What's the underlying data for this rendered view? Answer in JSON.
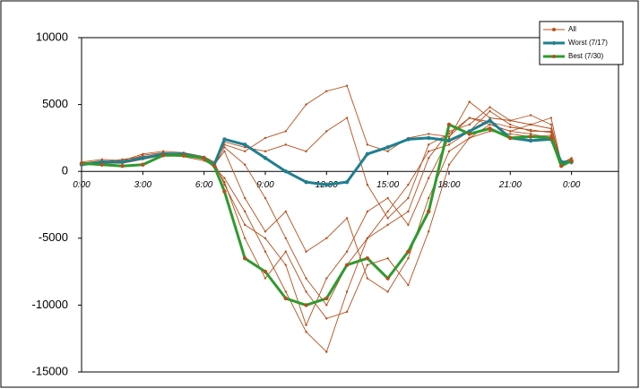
{
  "chart_data": {
    "type": "line",
    "x": [
      0,
      1,
      2,
      3,
      4,
      5,
      6,
      6.5,
      7,
      8,
      9,
      10,
      11,
      12,
      13,
      14,
      15,
      16,
      17,
      18,
      19,
      20,
      21,
      22,
      23,
      23.5,
      24
    ],
    "xlim": [
      0,
      26.3
    ],
    "xticks": [
      {
        "value": 0,
        "label": "0:00"
      },
      {
        "value": 3,
        "label": "3:00"
      },
      {
        "value": 6,
        "label": "6:00"
      },
      {
        "value": 9,
        "label": "9:00"
      },
      {
        "value": 12,
        "label": "12:00"
      },
      {
        "value": 15,
        "label": "15:00"
      },
      {
        "value": 18,
        "label": "18:00"
      },
      {
        "value": 21,
        "label": "21:00"
      },
      {
        "value": 24,
        "label": "0:00"
      }
    ],
    "ylim": [
      -15000,
      10000
    ],
    "yticks": [
      -15000,
      -10000,
      -5000,
      0,
      5000,
      10000
    ],
    "legend": "upper-right",
    "series": [
      {
        "name": "All",
        "color": "#b5501e",
        "lines": [
          [
            600,
            800,
            700,
            1200,
            1400,
            1300,
            1000,
            600,
            2000,
            1500,
            2500,
            3000,
            5000,
            6000,
            6400,
            2000,
            1500,
            2500,
            2800,
            2600,
            4000,
            3500,
            3000,
            3500,
            4000,
            600,
            1000
          ],
          [
            500,
            600,
            800,
            1000,
            1200,
            1300,
            900,
            300,
            -500,
            -3000,
            -6000,
            -9000,
            -12000,
            -13500,
            -9000,
            -5000,
            -3000,
            -1000,
            1500,
            2000,
            3000,
            4500,
            3500,
            3000,
            3000,
            500,
            700
          ],
          [
            700,
            900,
            800,
            1300,
            1500,
            1400,
            1100,
            700,
            -1000,
            -4000,
            -5000,
            -7000,
            -11500,
            -8000,
            -6000,
            -3000,
            -2000,
            -4000,
            -500,
            2500,
            5200,
            4000,
            3800,
            3500,
            3200,
            800,
            600
          ],
          [
            600,
            700,
            900,
            1100,
            1300,
            1200,
            900,
            500,
            1500,
            -2000,
            -4500,
            -3000,
            -6000,
            -5000,
            -3500,
            -8000,
            -9000,
            -6500,
            -2000,
            1500,
            2500,
            3500,
            3000,
            2800,
            2500,
            700,
            900
          ],
          [
            500,
            600,
            600,
            900,
            1200,
            1100,
            800,
            400,
            1800,
            500,
            -2000,
            -5000,
            -8000,
            -10000,
            -7000,
            -5000,
            -4000,
            -3000,
            1000,
            3000,
            3500,
            4800,
            3800,
            4200,
            3500,
            500,
            800
          ],
          [
            600,
            700,
            800,
            1000,
            1300,
            1300,
            1000,
            600,
            2200,
            1800,
            1500,
            2000,
            1500,
            3000,
            4000,
            -1000,
            -3500,
            -2000,
            2000,
            2800,
            4000,
            3700,
            3300,
            3100,
            2900,
            600,
            700
          ],
          [
            550,
            650,
            700,
            1000,
            1200,
            1200,
            900,
            500,
            -800,
            -5000,
            -8000,
            -6000,
            -9000,
            -11000,
            -10500,
            -7000,
            -6500,
            -8500,
            -4500,
            500,
            2500,
            3000,
            2800,
            2600,
            2700,
            500,
            800
          ]
        ]
      },
      {
        "name": "Worst (7/17)",
        "color": "#1f7f8f",
        "values": [
          500,
          700,
          700,
          1000,
          1300,
          1300,
          1000,
          500,
          2400,
          2000,
          1000,
          0,
          -800,
          -1000,
          -800,
          1300,
          1800,
          2400,
          2500,
          2300,
          3000,
          3800,
          2500,
          2300,
          2400,
          700,
          700
        ]
      },
      {
        "name": "Best (7/30)",
        "color": "#2e9a2e",
        "values": [
          600,
          500,
          400,
          500,
          1200,
          1200,
          1000,
          400,
          -1500,
          -6500,
          -7500,
          -9500,
          -10000,
          -9500,
          -7000,
          -6500,
          -8000,
          -6000,
          -3000,
          3500,
          2800,
          3200,
          2500,
          2600,
          2500,
          400,
          800
        ]
      }
    ]
  }
}
